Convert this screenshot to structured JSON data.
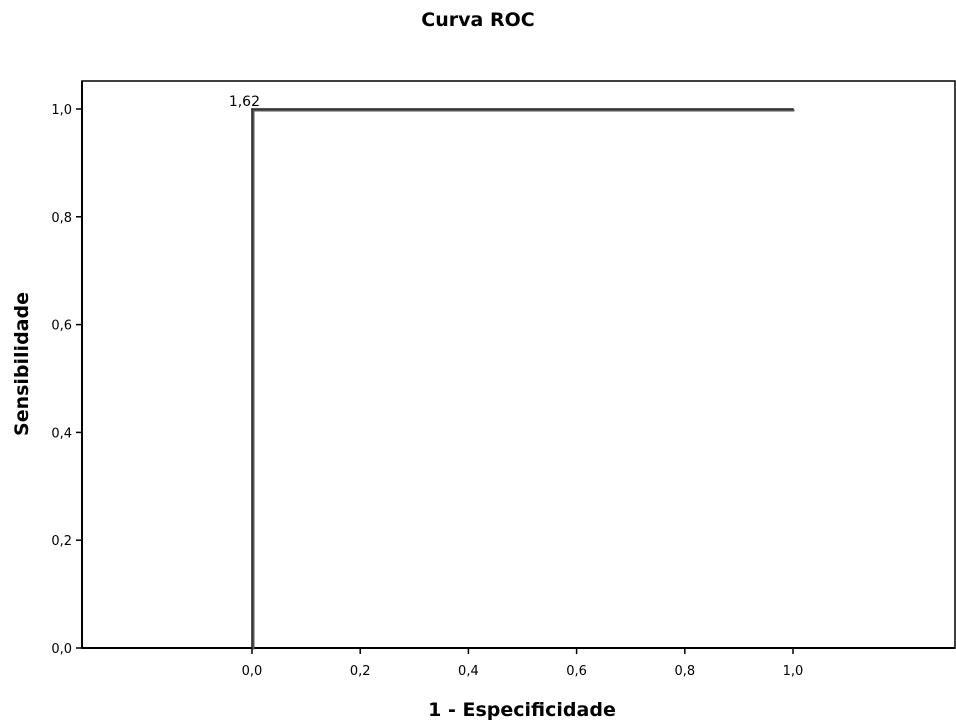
{
  "chart_data": {
    "type": "line",
    "title": "Curva ROC",
    "xlabel": "1 - Especificidade",
    "ylabel": "Sensibilidade",
    "xlim": [
      -0.314,
      1.3
    ],
    "ylim": [
      0,
      1.052
    ],
    "x_ticks": [
      {
        "value": 0.0,
        "label": "0,0"
      },
      {
        "value": 0.2,
        "label": "0,2"
      },
      {
        "value": 0.4,
        "label": "0,4"
      },
      {
        "value": 0.6,
        "label": "0,6"
      },
      {
        "value": 0.8,
        "label": "0,8"
      },
      {
        "value": 1.0,
        "label": "1,0"
      }
    ],
    "y_ticks": [
      {
        "value": 0.0,
        "label": "0,0"
      },
      {
        "value": 0.2,
        "label": "0,2"
      },
      {
        "value": 0.4,
        "label": "0,4"
      },
      {
        "value": 0.6,
        "label": "0,6"
      },
      {
        "value": 0.8,
        "label": "0,8"
      },
      {
        "value": 1.0,
        "label": "1,0"
      }
    ],
    "series": [
      {
        "x": [
          0.0,
          0.0,
          1.0
        ],
        "y": [
          0.0,
          1.0,
          1.0
        ],
        "color": "#555555"
      }
    ],
    "annotations": [
      {
        "x": 0.0,
        "y": 1.0,
        "text": "1,62"
      }
    ],
    "grid": false,
    "legend": "none"
  }
}
